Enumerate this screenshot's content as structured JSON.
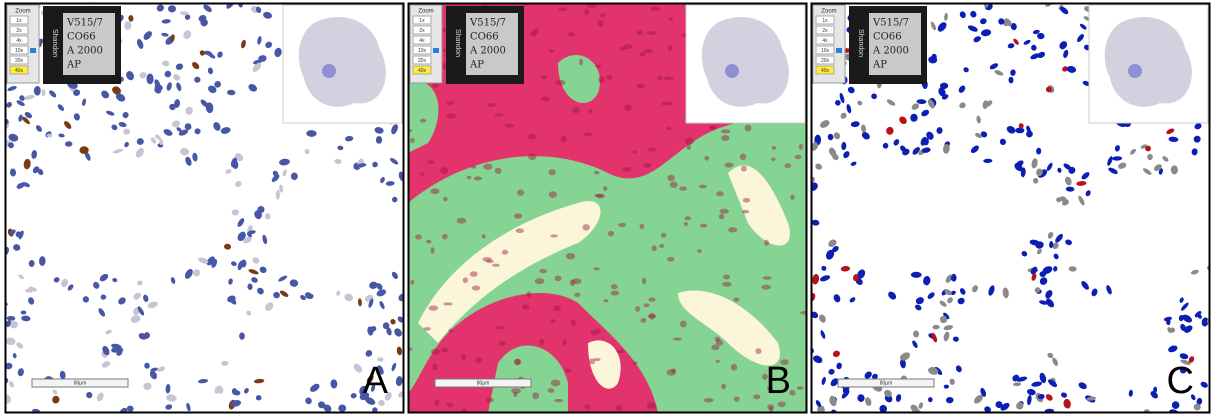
{
  "panels": [
    {
      "label": "A",
      "zoom": {
        "title": "Zoom",
        "levels": [
          "1x",
          "2x",
          "4x",
          "10x",
          "20x",
          "40x"
        ]
      },
      "slide_label": {
        "brand": "Shandon",
        "lines": [
          "V515/7",
          "CO66",
          "A 2000",
          "AP"
        ]
      },
      "scale_bar": "80µm",
      "style": "ihc"
    },
    {
      "label": "B",
      "zoom": {
        "title": "Zoom",
        "levels": [
          "1x",
          "2x",
          "4x",
          "10x",
          "20x",
          "40x"
        ]
      },
      "slide_label": {
        "brand": "Shandon",
        "lines": [
          "V515/7",
          "CO66",
          "A 2000",
          "AP"
        ]
      },
      "scale_bar": "80µm",
      "style": "regions"
    },
    {
      "label": "C",
      "zoom": {
        "title": "Zoom",
        "levels": [
          "1x",
          "2x",
          "4x",
          "10x",
          "20x",
          "40x"
        ]
      },
      "slide_label": {
        "brand": "Shandon",
        "lines": [
          "V515/7",
          "CO66",
          "A 2000",
          "AP"
        ]
      },
      "scale_bar": "80µm",
      "style": "classified"
    }
  ]
}
